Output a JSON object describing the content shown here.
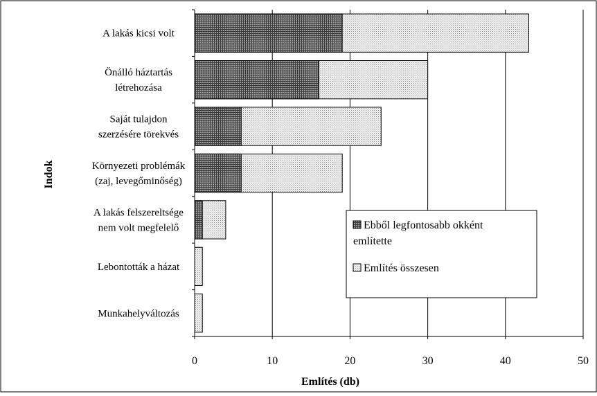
{
  "chart_data": {
    "type": "bar",
    "orientation": "horizontal",
    "overlay": true,
    "categories": [
      [
        "A lakás kicsi volt"
      ],
      [
        "Önálló háztartás",
        "létrehozása"
      ],
      [
        "Saját tulajdon",
        "szerzésére törekvés"
      ],
      [
        "Környezeti problémák",
        "(zaj, levegőminőség)"
      ],
      [
        "A lakás felszereltsége",
        "nem volt megfelelő"
      ],
      [
        "Lebontották a házat"
      ],
      [
        "Munkahelyváltozás"
      ]
    ],
    "series": [
      {
        "name": "Említés összesen",
        "values": [
          43,
          30,
          24,
          19,
          4,
          1,
          1
        ],
        "color": "#f0f0f0",
        "pattern": "dots"
      },
      {
        "name": "Ebből legfontosabb okként említette",
        "values": [
          19,
          16,
          6,
          6,
          1,
          0,
          0
        ],
        "color": "#808080",
        "pattern": "grid"
      }
    ],
    "legend": [
      [
        "Ebből legfontosabb okként",
        "említette"
      ],
      [
        "Említés összesen"
      ]
    ],
    "xlabel": "Említés (db)",
    "ylabel": "Indok",
    "xlim": [
      0,
      50
    ],
    "xticks": [
      "0",
      "10",
      "20",
      "30",
      "40",
      "50"
    ],
    "grid": "vertical",
    "legend_position": "lower-right"
  }
}
